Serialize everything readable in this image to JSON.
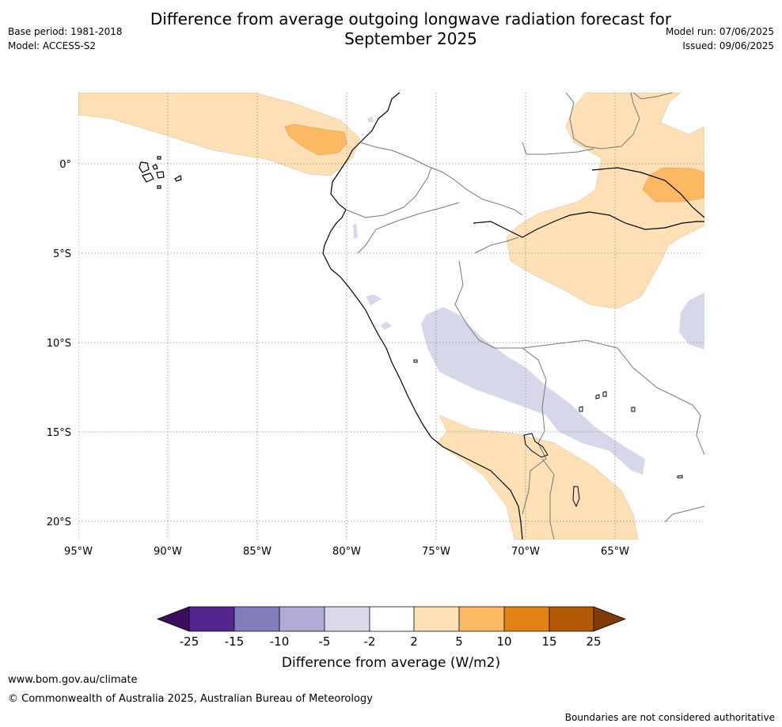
{
  "header": {
    "title_line1": "Difference from average outgoing longwave radiation forecast for",
    "title_line2": "September 2025",
    "base_period": "Base period: 1981-2018",
    "model": "Model: ACCESS-S2",
    "model_run": "Model run: 07/06/2025",
    "issued": "Issued: 09/06/2025"
  },
  "map": {
    "lon_labels": [
      "95°W",
      "90°W",
      "85°W",
      "80°W",
      "75°W",
      "70°W",
      "65°W"
    ],
    "lat_labels": [
      "0°",
      "5°S",
      "10°S",
      "15°S",
      "20°S"
    ],
    "grid": "dotted"
  },
  "colorbar": {
    "tick_labels": [
      "-25",
      "-15",
      "-10",
      "-5",
      "-2",
      "2",
      "5",
      "10",
      "15",
      "25"
    ],
    "colors": [
      "#3b0f5e",
      "#54278f",
      "#807dba",
      "#b1aad5",
      "#dadaeb",
      "#ffffff",
      "#fde0b6",
      "#fdb863",
      "#e08214",
      "#b35806",
      "#7f3b08"
    ],
    "label": "Difference from average (W/m2)"
  },
  "footer": {
    "url": "www.bom.gov.au/climate",
    "copyright": "© Commonwealth of Australia 2025, Australian Bureau of Meteorology",
    "note": "Boundaries are not considered authoritative"
  }
}
